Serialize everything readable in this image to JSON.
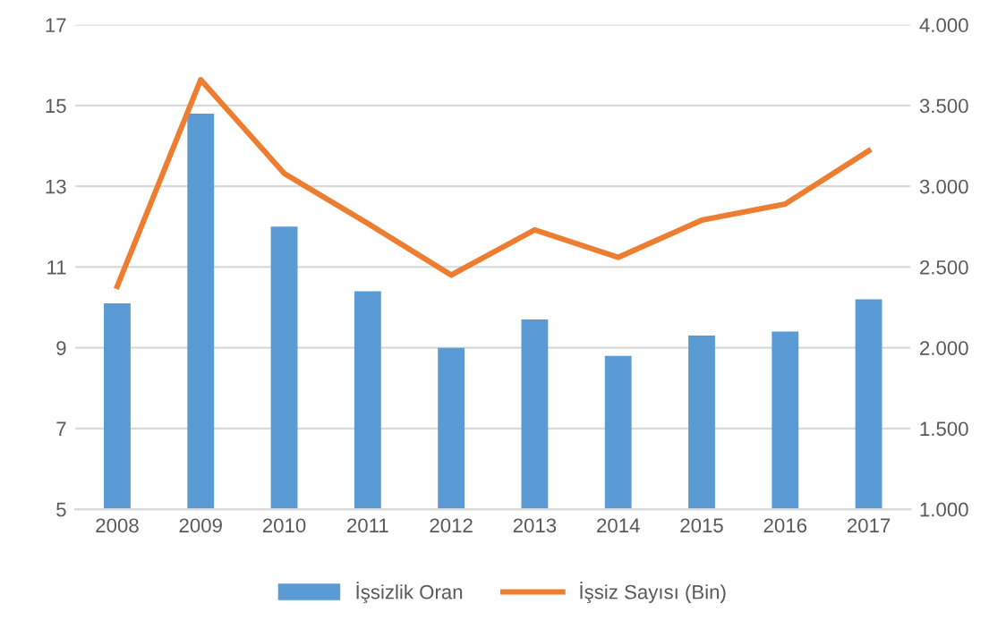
{
  "chart_data": {
    "type": "bar",
    "categories": [
      "2008",
      "2009",
      "2010",
      "2011",
      "2012",
      "2013",
      "2014",
      "2015",
      "2016",
      "2017"
    ],
    "series": [
      {
        "name": "İşsizlik Oran",
        "color": "#5b9bd5",
        "values": [
          10.1,
          14.8,
          12.0,
          10.4,
          9.0,
          9.7,
          8.8,
          9.3,
          9.4,
          10.2
        ]
      },
      {
        "name": "İşsiz Sayısı (Bin)",
        "type": "line",
        "axis": "y2",
        "color": "#ed7d31",
        "values": [
          2380,
          3660,
          3080,
          2770,
          2450,
          2730,
          2560,
          2790,
          2890,
          3220
        ]
      }
    ],
    "ylim": [
      5,
      17
    ],
    "yticks": [
      5,
      7,
      9,
      11,
      13,
      15,
      17
    ],
    "y2lim": [
      1000,
      4000
    ],
    "y2ticks": [
      {
        "value": 1000,
        "label": "1.000"
      },
      {
        "value": 1500,
        "label": "1.500"
      },
      {
        "value": 2000,
        "label": "2.000"
      },
      {
        "value": 2500,
        "label": "2.500"
      },
      {
        "value": 3000,
        "label": "3.000"
      },
      {
        "value": 3500,
        "label": "3.500"
      },
      {
        "value": 4000,
        "label": "4.000"
      }
    ],
    "grid": "y",
    "legend": "bottom",
    "marker": "none",
    "line_style": "solid"
  }
}
